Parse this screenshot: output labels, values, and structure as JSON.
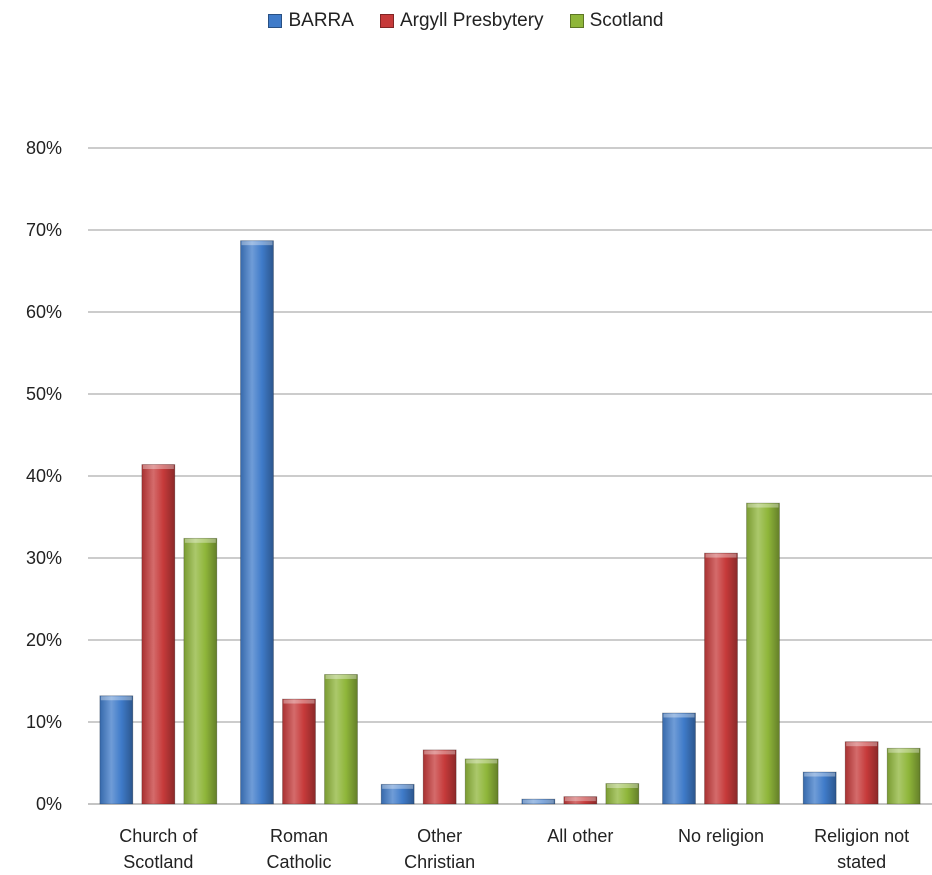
{
  "chart_data": {
    "type": "bar",
    "categories": [
      [
        "Church of",
        "Scotland"
      ],
      [
        "Roman",
        "Catholic"
      ],
      [
        "Other",
        "Christian"
      ],
      [
        "All other"
      ],
      [
        "No religion"
      ],
      [
        "Religion not",
        "stated"
      ]
    ],
    "series": [
      {
        "name": "BARRA",
        "color": "#3f7bc9",
        "values": [
          13.2,
          68.7,
          2.4,
          0.6,
          11.1,
          3.9
        ]
      },
      {
        "name": "Argyll Presbytery",
        "color": "#c63a3a",
        "values": [
          41.4,
          12.8,
          6.6,
          0.9,
          30.6,
          7.6
        ]
      },
      {
        "name": "Scotland",
        "color": "#8fb63a",
        "values": [
          32.4,
          15.8,
          5.5,
          2.5,
          36.7,
          6.8
        ]
      }
    ],
    "ylim": [
      0,
      80
    ],
    "yticks": [
      "0%",
      "10%",
      "20%",
      "30%",
      "40%",
      "50%",
      "60%",
      "70%",
      "80%"
    ],
    "grid": true,
    "legend_position": "top-center"
  }
}
